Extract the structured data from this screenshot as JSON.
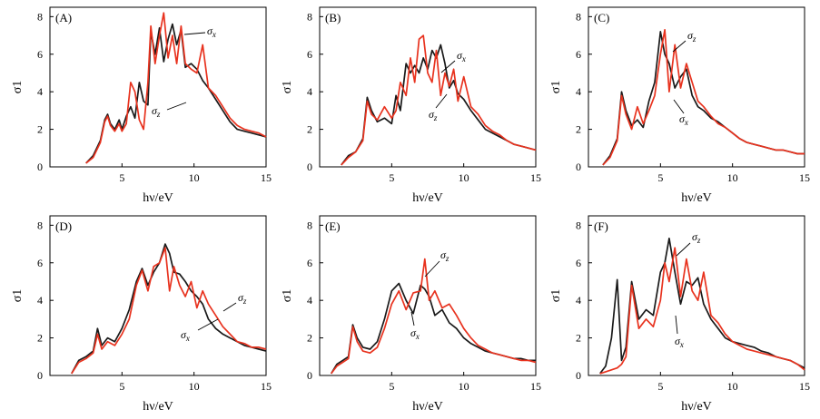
{
  "colors": {
    "sigma_x": "#1a1a1a",
    "sigma_z": "#e8321e"
  },
  "chart_data": [
    {
      "type": "line",
      "panel": "(A)",
      "xlabel": "hν/eV",
      "ylabel": "σ1",
      "xlim": [
        0,
        15
      ],
      "ylim": [
        0,
        8.5
      ],
      "xticks": [
        5,
        10,
        15
      ],
      "xtick_labels": [
        "5",
        "10",
        "15"
      ],
      "yticks": [
        0,
        2,
        4,
        6,
        8
      ],
      "ytick_labels": [
        "0",
        "2",
        "4",
        "6",
        "8"
      ],
      "x": [
        2.5,
        3.0,
        3.5,
        3.8,
        4.0,
        4.2,
        4.5,
        4.8,
        5.0,
        5.3,
        5.6,
        5.9,
        6.2,
        6.5,
        6.8,
        7.0,
        7.3,
        7.6,
        7.9,
        8.2,
        8.5,
        8.8,
        9.1,
        9.4,
        9.8,
        10.2,
        10.6,
        11.0,
        11.5,
        12.0,
        12.5,
        13.0,
        13.5,
        14.0,
        14.5,
        15.0
      ],
      "series": [
        {
          "name": "σx",
          "values": [
            0.2,
            0.6,
            1.4,
            2.5,
            2.8,
            2.3,
            2.0,
            2.5,
            2.0,
            2.7,
            3.2,
            2.6,
            4.5,
            3.5,
            3.3,
            7.2,
            6.0,
            7.4,
            5.6,
            6.8,
            7.6,
            6.5,
            7.3,
            5.3,
            5.5,
            5.2,
            4.6,
            4.2,
            3.6,
            3.0,
            2.4,
            2.0,
            1.9,
            1.8,
            1.7,
            1.6
          ]
        },
        {
          "name": "σz",
          "values": [
            0.2,
            0.5,
            1.3,
            2.4,
            2.7,
            2.2,
            1.9,
            2.3,
            1.9,
            2.3,
            4.5,
            4.0,
            2.5,
            2.0,
            4.5,
            7.5,
            5.5,
            7.0,
            8.2,
            5.8,
            7.0,
            5.5,
            7.5,
            5.5,
            5.2,
            5.0,
            6.5,
            4.2,
            3.8,
            3.2,
            2.6,
            2.2,
            2.0,
            1.9,
            1.8,
            1.6
          ]
        }
      ],
      "annotations": [
        {
          "label": "σ",
          "sub": "x",
          "text": "σx"
        },
        {
          "label": "σ",
          "sub": "z",
          "text": "σz"
        }
      ]
    },
    {
      "type": "line",
      "panel": "(B)",
      "xlabel": "hν/eV",
      "ylabel": "σ1",
      "xlim": [
        0,
        15
      ],
      "ylim": [
        0,
        8.5
      ],
      "xticks": [
        5,
        10,
        15
      ],
      "xtick_labels": [
        "5",
        "10",
        "15"
      ],
      "yticks": [
        0,
        2,
        4,
        6,
        8
      ],
      "ytick_labels": [
        "0",
        "2",
        "4",
        "6",
        "8"
      ],
      "x": [
        1.5,
        2.0,
        2.5,
        3.0,
        3.3,
        3.6,
        4.0,
        4.5,
        5.0,
        5.3,
        5.6,
        6.0,
        6.3,
        6.6,
        6.9,
        7.2,
        7.5,
        7.8,
        8.1,
        8.4,
        8.7,
        9.0,
        9.3,
        9.6,
        10.0,
        10.5,
        11.0,
        11.5,
        12.0,
        12.5,
        13.0,
        13.5,
        14.0,
        14.5,
        15.0
      ],
      "series": [
        {
          "name": "σx",
          "values": [
            0.1,
            0.6,
            0.8,
            1.5,
            3.7,
            3.0,
            2.4,
            2.6,
            2.3,
            3.8,
            3.0,
            5.5,
            5.0,
            5.4,
            5.0,
            5.8,
            5.2,
            6.2,
            5.8,
            6.5,
            5.5,
            4.2,
            4.6,
            3.9,
            3.6,
            3.0,
            2.5,
            2.0,
            1.8,
            1.6,
            1.4,
            1.2,
            1.1,
            1.0,
            0.9
          ]
        },
        {
          "name": "σz",
          "values": [
            0.1,
            0.5,
            0.8,
            1.4,
            3.5,
            2.8,
            2.5,
            3.2,
            2.6,
            3.0,
            4.5,
            3.8,
            5.8,
            4.5,
            6.8,
            7.0,
            5.0,
            4.5,
            6.2,
            3.8,
            5.0,
            4.3,
            5.2,
            3.5,
            4.8,
            3.2,
            2.8,
            2.2,
            1.9,
            1.7,
            1.4,
            1.2,
            1.1,
            1.0,
            0.9
          ]
        }
      ],
      "annotations": [
        {
          "label": "σ",
          "sub": "x",
          "text": "σx"
        },
        {
          "label": "σ",
          "sub": "z",
          "text": "σz"
        }
      ]
    },
    {
      "type": "line",
      "panel": "(C)",
      "xlabel": "hν/eV",
      "ylabel": "σ1",
      "xlim": [
        0,
        15
      ],
      "ylim": [
        0,
        8.5
      ],
      "xticks": [
        5,
        10,
        15
      ],
      "xtick_labels": [
        "5",
        "10",
        "15"
      ],
      "yticks": [
        0,
        2,
        4,
        6,
        8
      ],
      "ytick_labels": [
        "0",
        "2",
        "4",
        "6",
        "8"
      ],
      "x": [
        1.0,
        1.5,
        2.0,
        2.3,
        2.6,
        3.0,
        3.4,
        3.8,
        4.2,
        4.6,
        5.0,
        5.3,
        5.6,
        6.0,
        6.4,
        6.8,
        7.2,
        7.6,
        8.0,
        8.5,
        9.0,
        9.5,
        10.0,
        10.5,
        11.0,
        11.5,
        12.0,
        12.5,
        13.0,
        13.5,
        14.0,
        14.5,
        15.0
      ],
      "series": [
        {
          "name": "σx",
          "values": [
            0.1,
            0.6,
            1.5,
            4.0,
            3.0,
            2.2,
            2.5,
            2.1,
            3.5,
            4.5,
            7.2,
            6.0,
            5.5,
            4.2,
            4.8,
            5.2,
            3.8,
            3.2,
            3.0,
            2.6,
            2.4,
            2.1,
            1.8,
            1.5,
            1.3,
            1.2,
            1.1,
            1.0,
            0.9,
            0.9,
            0.8,
            0.7,
            0.7
          ]
        },
        {
          "name": "σz",
          "values": [
            0.1,
            0.5,
            1.4,
            3.8,
            2.8,
            2.0,
            3.2,
            2.3,
            3.0,
            3.8,
            6.0,
            7.3,
            4.0,
            6.5,
            4.2,
            5.5,
            4.5,
            3.5,
            3.2,
            2.7,
            2.3,
            2.1,
            1.8,
            1.5,
            1.3,
            1.2,
            1.1,
            1.0,
            0.9,
            0.9,
            0.8,
            0.7,
            0.7
          ]
        }
      ],
      "annotations": [
        {
          "label": "σ",
          "sub": "z",
          "text": "σz"
        },
        {
          "label": "σ",
          "sub": "x",
          "text": "σx"
        }
      ]
    },
    {
      "type": "line",
      "panel": "(D)",
      "xlabel": "hν/eV",
      "ylabel": "σ1",
      "xlim": [
        0,
        15
      ],
      "ylim": [
        0,
        8.5
      ],
      "xticks": [
        5,
        10,
        15
      ],
      "xtick_labels": [
        "5",
        "10",
        "15"
      ],
      "yticks": [
        0,
        2,
        4,
        6,
        8
      ],
      "ytick_labels": [
        "0",
        "2",
        "4",
        "6",
        "8"
      ],
      "x": [
        1.5,
        2.0,
        2.5,
        3.0,
        3.3,
        3.6,
        4.0,
        4.5,
        5.0,
        5.5,
        6.0,
        6.4,
        6.8,
        7.2,
        7.6,
        8.0,
        8.3,
        8.6,
        9.0,
        9.4,
        9.8,
        10.2,
        10.6,
        11.0,
        11.5,
        12.0,
        12.5,
        13.0,
        13.5,
        14.0,
        14.5,
        15.0
      ],
      "series": [
        {
          "name": "σx",
          "values": [
            0.1,
            0.8,
            1.0,
            1.3,
            2.5,
            1.6,
            2.0,
            1.8,
            2.5,
            3.5,
            5.0,
            5.7,
            4.8,
            5.5,
            6.0,
            7.0,
            6.5,
            5.5,
            5.4,
            5.0,
            4.5,
            4.2,
            3.8,
            3.0,
            2.5,
            2.2,
            2.0,
            1.8,
            1.6,
            1.5,
            1.4,
            1.3
          ]
        },
        {
          "name": "σz",
          "values": [
            0.1,
            0.7,
            0.9,
            1.2,
            2.2,
            1.4,
            1.8,
            1.6,
            2.2,
            3.0,
            4.8,
            5.6,
            4.5,
            5.8,
            6.0,
            6.8,
            4.5,
            5.8,
            4.8,
            4.2,
            5.0,
            3.6,
            4.5,
            3.8,
            3.2,
            2.6,
            2.2,
            1.8,
            1.7,
            1.5,
            1.5,
            1.4
          ]
        }
      ],
      "annotations": [
        {
          "label": "σ",
          "sub": "z",
          "text": "σz"
        },
        {
          "label": "σ",
          "sub": "x",
          "text": "σx"
        }
      ]
    },
    {
      "type": "line",
      "panel": "(E)",
      "xlabel": "hν/eV",
      "ylabel": "σ1",
      "xlim": [
        0,
        15
      ],
      "ylim": [
        0,
        8.5
      ],
      "xticks": [
        5,
        10,
        15
      ],
      "xtick_labels": [
        "5",
        "10",
        "15"
      ],
      "yticks": [
        0,
        2,
        4,
        6,
        8
      ],
      "ytick_labels": [
        "0",
        "2",
        "4",
        "6",
        "8"
      ],
      "x": [
        0.8,
        1.2,
        1.6,
        2.0,
        2.3,
        2.6,
        3.0,
        3.5,
        4.0,
        4.5,
        5.0,
        5.5,
        6.0,
        6.5,
        7.0,
        7.3,
        7.6,
        8.0,
        8.5,
        9.0,
        9.5,
        10.0,
        10.5,
        11.0,
        11.5,
        12.0,
        12.5,
        13.0,
        13.5,
        14.0,
        14.5,
        15.0
      ],
      "series": [
        {
          "name": "σx",
          "values": [
            0.1,
            0.6,
            0.8,
            1.0,
            2.7,
            2.0,
            1.5,
            1.4,
            1.8,
            3.0,
            4.5,
            4.9,
            4.0,
            3.3,
            4.8,
            4.6,
            4.2,
            3.2,
            3.5,
            2.8,
            2.5,
            2.0,
            1.7,
            1.5,
            1.3,
            1.2,
            1.1,
            1.0,
            0.9,
            0.9,
            0.8,
            0.8
          ]
        },
        {
          "name": "σz",
          "values": [
            0.1,
            0.5,
            0.7,
            0.9,
            2.6,
            1.8,
            1.3,
            1.2,
            1.5,
            2.5,
            3.8,
            4.5,
            3.5,
            4.4,
            4.5,
            6.2,
            4.0,
            4.5,
            3.6,
            3.8,
            3.2,
            2.5,
            2.0,
            1.6,
            1.4,
            1.2,
            1.1,
            1.0,
            0.9,
            0.8,
            0.8,
            0.7
          ]
        }
      ],
      "annotations": [
        {
          "label": "σ",
          "sub": "z",
          "text": "σz"
        },
        {
          "label": "σ",
          "sub": "x",
          "text": "σx"
        }
      ]
    },
    {
      "type": "line",
      "panel": "(F)",
      "xlabel": "hν/eV",
      "ylabel": "σ1",
      "xlim": [
        0,
        15
      ],
      "ylim": [
        0,
        8.5
      ],
      "xticks": [
        5,
        10,
        15
      ],
      "xtick_labels": [
        "5",
        "10",
        "15"
      ],
      "yticks": [
        0,
        2,
        4,
        6,
        8
      ],
      "ytick_labels": [
        "0",
        "2",
        "4",
        "6",
        "8"
      ],
      "x": [
        0.8,
        1.2,
        1.6,
        2.0,
        2.3,
        2.6,
        3.0,
        3.5,
        4.0,
        4.5,
        5.0,
        5.3,
        5.6,
        6.0,
        6.4,
        6.8,
        7.2,
        7.6,
        8.0,
        8.5,
        9.0,
        9.5,
        10.0,
        10.5,
        11.0,
        11.5,
        12.0,
        12.5,
        13.0,
        13.5,
        14.0,
        14.5,
        15.0
      ],
      "series": [
        {
          "name": "σx",
          "values": [
            0.1,
            0.5,
            2.0,
            5.1,
            0.8,
            1.5,
            5.0,
            3.0,
            3.5,
            3.2,
            5.5,
            6.0,
            7.3,
            5.5,
            3.8,
            5.0,
            4.8,
            5.2,
            3.8,
            3.0,
            2.5,
            2.0,
            1.8,
            1.7,
            1.6,
            1.5,
            1.3,
            1.2,
            1.0,
            0.9,
            0.8,
            0.6,
            0.4
          ]
        },
        {
          "name": "σz",
          "values": [
            0.1,
            0.2,
            0.3,
            0.4,
            0.6,
            1.0,
            4.8,
            2.5,
            3.0,
            2.6,
            4.0,
            6.0,
            5.0,
            6.8,
            4.2,
            6.2,
            4.5,
            4.0,
            5.5,
            3.2,
            2.8,
            2.2,
            1.8,
            1.6,
            1.4,
            1.3,
            1.2,
            1.1,
            1.0,
            0.9,
            0.8,
            0.6,
            0.3
          ]
        }
      ],
      "annotations": [
        {
          "label": "σ",
          "sub": "z",
          "text": "σz"
        },
        {
          "label": "σ",
          "sub": "x",
          "text": "σx"
        }
      ]
    }
  ]
}
